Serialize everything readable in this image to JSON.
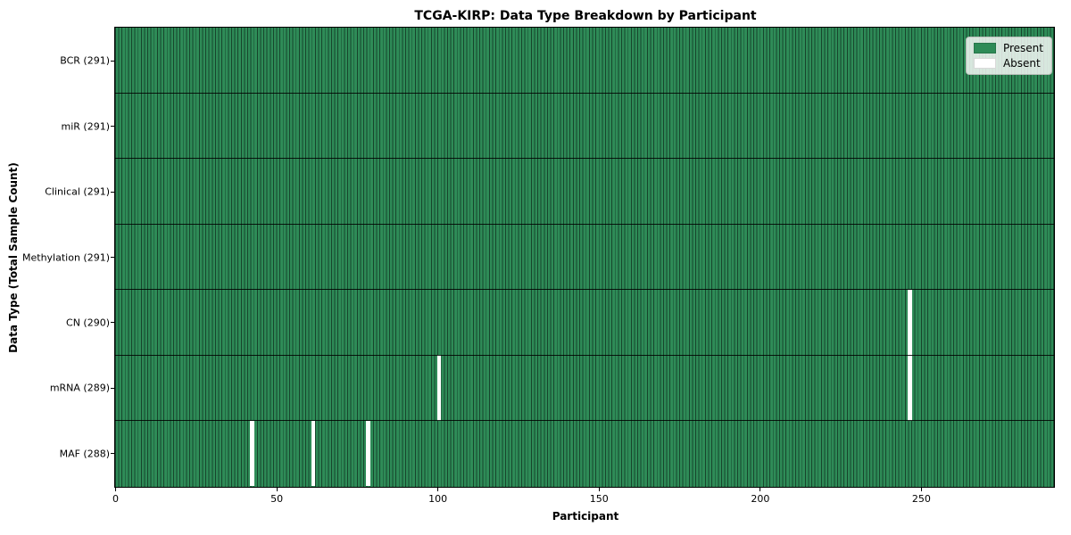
{
  "figure": {
    "title": "TCGA-KIRP: Data Type Breakdown by Participant",
    "xlabel": "Participant",
    "ylabel": "Data Type (Total Sample Count)"
  },
  "legend": {
    "items": [
      {
        "label": "Present",
        "color": "#2e8b57"
      },
      {
        "label": "Absent",
        "color": "#ffffff"
      }
    ]
  },
  "chart_data": {
    "type": "heatmap",
    "title": "TCGA-KIRP: Data Type Breakdown by Participant",
    "xlabel": "Participant",
    "ylabel": "Data Type (Total Sample Count)",
    "xlim": [
      0,
      291
    ],
    "x_ticks": [
      0,
      50,
      100,
      150,
      200,
      250
    ],
    "n_participants": 291,
    "rows": [
      {
        "label": "BCR (291)",
        "data_type": "BCR",
        "present_count": 291,
        "absent_participants": []
      },
      {
        "label": "miR (291)",
        "data_type": "miR",
        "present_count": 291,
        "absent_participants": []
      },
      {
        "label": "Clinical (291)",
        "data_type": "Clinical",
        "present_count": 291,
        "absent_participants": []
      },
      {
        "label": "Methylation (291)",
        "data_type": "Methylation",
        "present_count": 291,
        "absent_participants": []
      },
      {
        "label": "CN (290)",
        "data_type": "CN",
        "present_count": 290,
        "absent_participants": [
          246
        ]
      },
      {
        "label": "mRNA (289)",
        "data_type": "mRNA",
        "present_count": 289,
        "absent_participants": [
          100,
          246
        ]
      },
      {
        "label": "MAF (288)",
        "data_type": "MAF",
        "present_count": 288,
        "absent_participants": [
          42,
          61,
          78
        ]
      }
    ],
    "colors": {
      "present": "#2e8b57",
      "present_edge": "#17452c",
      "absent": "#ffffff"
    },
    "legend_entries": [
      "Present",
      "Absent"
    ],
    "legend_position": "upper right",
    "grid": "row-separator-lines"
  }
}
